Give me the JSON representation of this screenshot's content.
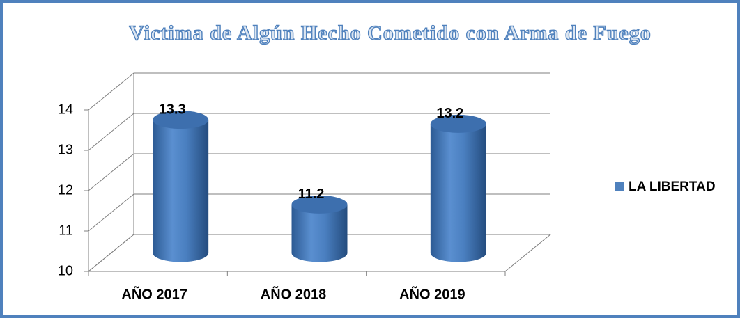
{
  "chart_data": {
    "type": "bar3d",
    "title": "Victima de Algún Hecho Cometido con Arma de Fuego",
    "categories": [
      "AÑO 2017",
      "AÑO 2018",
      "AÑO 2019"
    ],
    "series": [
      {
        "name": "LA LIBERTAD",
        "color": "#4f81bd",
        "values": [
          13.3,
          11.2,
          13.2
        ]
      }
    ],
    "ylim": [
      10,
      14
    ],
    "yticks": [
      10,
      11,
      12,
      13,
      14
    ],
    "grid": true,
    "legend": "right"
  }
}
